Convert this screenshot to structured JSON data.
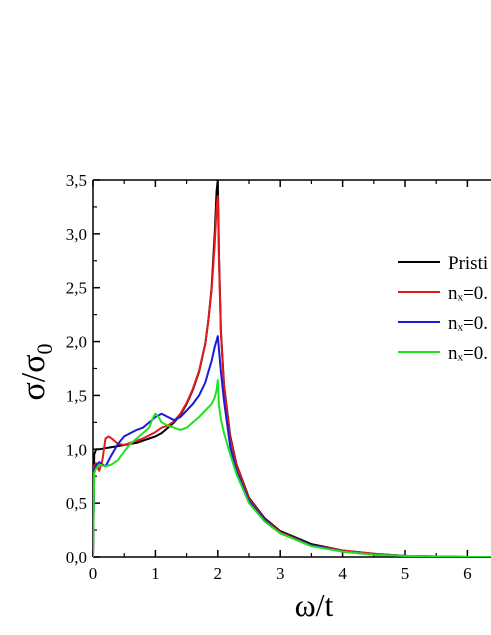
{
  "chart_data": {
    "type": "line",
    "title": "",
    "xlabel": "ω/t",
    "ylabel_main": "σ/σ",
    "ylabel_sub": "0",
    "xlim": [
      0,
      6.5
    ],
    "ylim": [
      0,
      3.5
    ],
    "x_ticks": [
      {
        "value": 0,
        "label": "0"
      },
      {
        "value": 1,
        "label": "1"
      },
      {
        "value": 2,
        "label": "2"
      },
      {
        "value": 3,
        "label": "3"
      },
      {
        "value": 4,
        "label": "4"
      },
      {
        "value": 5,
        "label": "5"
      },
      {
        "value": 6,
        "label": "6"
      }
    ],
    "y_ticks": [
      {
        "value": 0.0,
        "label": "0,0"
      },
      {
        "value": 0.5,
        "label": "0,5"
      },
      {
        "value": 1.0,
        "label": "1,0"
      },
      {
        "value": 1.5,
        "label": "1,5"
      },
      {
        "value": 2.0,
        "label": "2,0"
      },
      {
        "value": 2.5,
        "label": "2,5"
      },
      {
        "value": 3.0,
        "label": "3,0"
      },
      {
        "value": 3.5,
        "label": "3,5"
      }
    ],
    "grid": false,
    "legend_position": "right",
    "series": [
      {
        "name": "Pristi",
        "color": "#000000",
        "x": [
          0,
          0.02,
          0.05,
          0.1,
          0.2,
          0.3,
          0.4,
          0.5,
          0.6,
          0.7,
          0.8,
          0.9,
          1.0,
          1.1,
          1.2,
          1.3,
          1.4,
          1.5,
          1.6,
          1.7,
          1.8,
          1.85,
          1.9,
          1.95,
          1.98,
          2.0,
          2.02,
          2.05,
          2.1,
          2.2,
          2.3,
          2.5,
          2.75,
          3.0,
          3.5,
          4.0,
          4.5,
          5.0,
          5.5,
          6.0,
          6.5
        ],
        "y": [
          0,
          0.95,
          1.0,
          1.0,
          1.01,
          1.02,
          1.03,
          1.04,
          1.05,
          1.06,
          1.08,
          1.1,
          1.12,
          1.15,
          1.2,
          1.25,
          1.32,
          1.42,
          1.55,
          1.72,
          1.98,
          2.2,
          2.5,
          3.0,
          3.4,
          3.5,
          2.8,
          2.1,
          1.6,
          1.12,
          0.86,
          0.55,
          0.36,
          0.24,
          0.12,
          0.06,
          0.03,
          0.01,
          0.005,
          0.0,
          0.0
        ]
      },
      {
        "name": "nₓ=0.",
        "color": "#e41a1c",
        "x": [
          0,
          0.02,
          0.05,
          0.1,
          0.15,
          0.2,
          0.25,
          0.3,
          0.4,
          0.5,
          0.6,
          0.7,
          0.8,
          0.9,
          1.0,
          1.1,
          1.2,
          1.3,
          1.4,
          1.5,
          1.6,
          1.7,
          1.8,
          1.85,
          1.9,
          1.95,
          1.98,
          2.0,
          2.02,
          2.05,
          2.1,
          2.2,
          2.3,
          2.5,
          2.75,
          3.0,
          3.5,
          4.0,
          4.5,
          5.0,
          5.5,
          6.0,
          6.5
        ],
        "y": [
          0,
          0.85,
          0.87,
          0.8,
          0.9,
          1.1,
          1.12,
          1.1,
          1.05,
          1.04,
          1.06,
          1.08,
          1.1,
          1.13,
          1.16,
          1.2,
          1.22,
          1.26,
          1.33,
          1.43,
          1.56,
          1.73,
          1.98,
          2.2,
          2.48,
          2.9,
          3.25,
          3.35,
          2.75,
          2.08,
          1.58,
          1.1,
          0.85,
          0.54,
          0.35,
          0.23,
          0.11,
          0.06,
          0.03,
          0.01,
          0.005,
          0.0,
          0.0
        ]
      },
      {
        "name": "nₓ=0.",
        "color": "#1a1adc",
        "x": [
          0,
          0.02,
          0.05,
          0.1,
          0.15,
          0.2,
          0.3,
          0.4,
          0.5,
          0.6,
          0.7,
          0.8,
          0.9,
          1.0,
          1.1,
          1.2,
          1.3,
          1.4,
          1.5,
          1.6,
          1.7,
          1.8,
          1.85,
          1.9,
          1.95,
          2.0,
          2.05,
          2.1,
          2.2,
          2.3,
          2.5,
          2.75,
          3.0,
          3.5,
          4.0,
          4.5,
          5.0,
          5.5,
          6.0,
          6.5
        ],
        "y": [
          0,
          0.8,
          0.85,
          0.88,
          0.86,
          0.84,
          0.95,
          1.05,
          1.12,
          1.15,
          1.18,
          1.2,
          1.25,
          1.3,
          1.33,
          1.3,
          1.27,
          1.3,
          1.36,
          1.42,
          1.5,
          1.62,
          1.72,
          1.82,
          1.95,
          2.05,
          1.72,
          1.45,
          1.02,
          0.8,
          0.52,
          0.34,
          0.22,
          0.11,
          0.05,
          0.02,
          0.01,
          0.005,
          0.0,
          0.0
        ]
      },
      {
        "name": "nₓ=0.",
        "color": "#22e022",
        "x": [
          0,
          0.02,
          0.05,
          0.1,
          0.2,
          0.3,
          0.4,
          0.5,
          0.6,
          0.7,
          0.8,
          0.9,
          0.95,
          1.0,
          1.05,
          1.1,
          1.2,
          1.3,
          1.4,
          1.5,
          1.6,
          1.7,
          1.8,
          1.9,
          1.95,
          1.98,
          2.0,
          2.02,
          2.05,
          2.1,
          2.2,
          2.3,
          2.5,
          2.75,
          3.0,
          3.5,
          4.0,
          4.5,
          5.0,
          5.5,
          6.0,
          6.5
        ],
        "y": [
          0,
          0.78,
          0.82,
          0.86,
          0.84,
          0.86,
          0.9,
          0.98,
          1.05,
          1.1,
          1.15,
          1.2,
          1.28,
          1.33,
          1.3,
          1.25,
          1.22,
          1.2,
          1.18,
          1.2,
          1.25,
          1.3,
          1.36,
          1.42,
          1.48,
          1.55,
          1.64,
          1.4,
          1.28,
          1.15,
          0.95,
          0.77,
          0.5,
          0.33,
          0.22,
          0.1,
          0.05,
          0.02,
          0.01,
          0.005,
          0.0,
          0.0
        ]
      }
    ]
  }
}
